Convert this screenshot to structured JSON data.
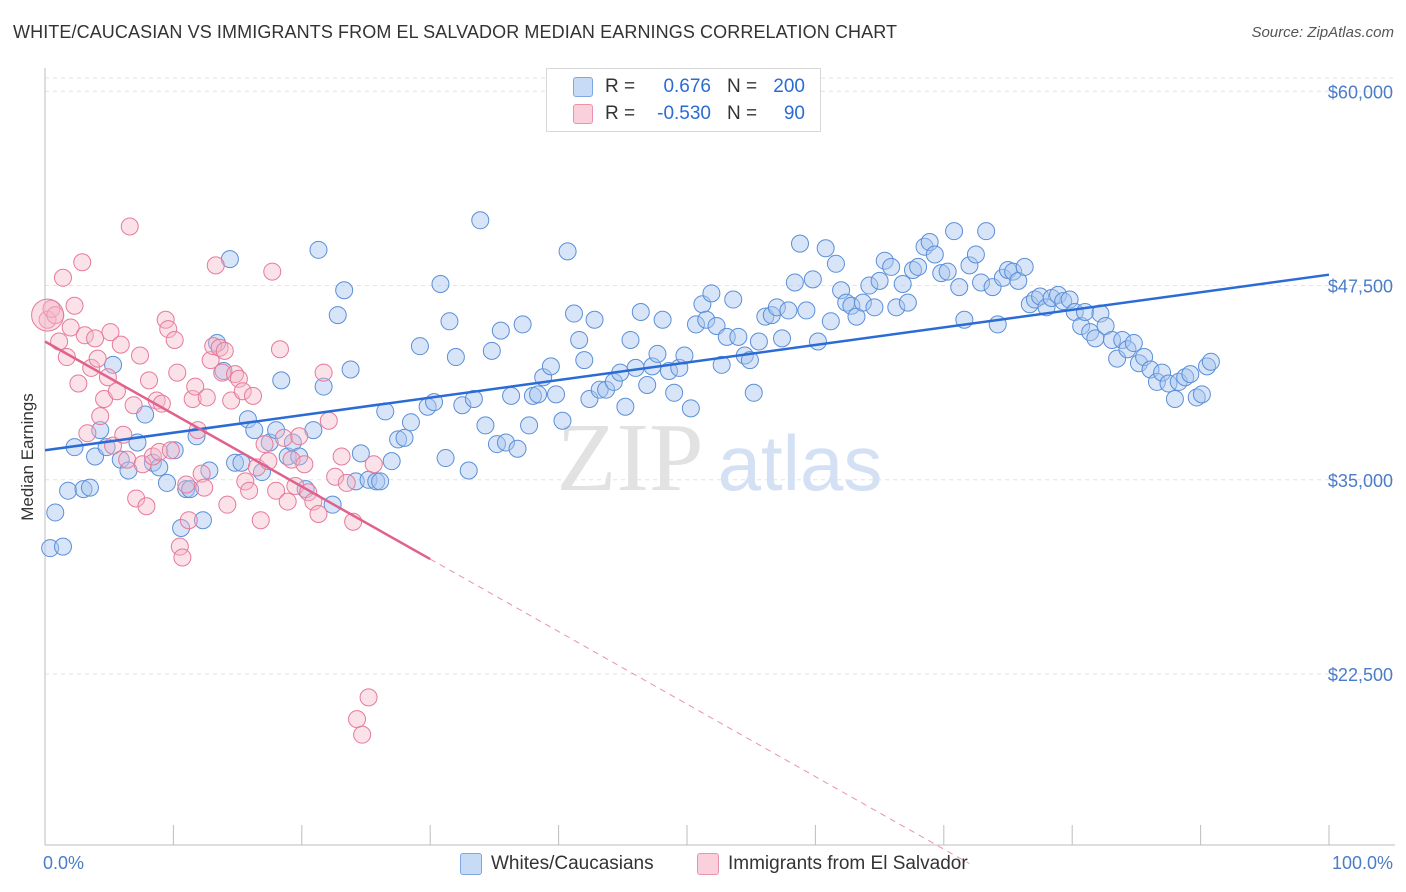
{
  "header": {
    "title": "WHITE/CAUCASIAN VS IMMIGRANTS FROM EL SALVADOR MEDIAN EARNINGS CORRELATION CHART",
    "source": "Source: ZipAtlas.com"
  },
  "watermark": {
    "zip": "ZIP",
    "atlas": "atlas"
  },
  "legend": {
    "rows": [
      {
        "r_label": "R =",
        "r_value": "0.676",
        "n_label": "N =",
        "n_value": "200",
        "color": "#a9c6f0"
      },
      {
        "r_label": "R =",
        "r_value": "-0.530",
        "n_label": "N =",
        "n_value": "90",
        "color": "#f5b6c8"
      }
    ]
  },
  "bottom_legend": {
    "items": [
      {
        "label": "Whites/Caucasians",
        "color": "#a9c6f0"
      },
      {
        "label": "Immigrants from El Salvador",
        "color": "#f5b6c8"
      }
    ]
  },
  "chart_data": {
    "type": "scatter",
    "title": "WHITE/CAUCASIAN VS IMMIGRANTS FROM EL SALVADOR MEDIAN EARNINGS CORRELATION CHART",
    "xlabel": "",
    "ylabel": "Median Earnings",
    "xlim": [
      0,
      100
    ],
    "ylim": [
      11500,
      61500
    ],
    "x_tick_labels": [
      "0.0%",
      "100.0%"
    ],
    "y_ticks": [
      22500,
      35000,
      47500,
      60000
    ],
    "y_tick_labels": [
      "$22,500",
      "$35,000",
      "$47,500",
      "$60,000"
    ],
    "grid": true,
    "legend_position": "top-center",
    "colors": {
      "blue_fill": "#a9c6f0",
      "blue_edge": "#5b8fd8",
      "blue_line": "#2a6bd6",
      "pink_fill": "#f5b6c8",
      "pink_edge": "#e67a9b",
      "pink_line": "#e0628c"
    },
    "series": [
      {
        "name": "Whites/Caucasians",
        "r": 0.676,
        "n": 200,
        "trend": {
          "x": [
            0,
            100
          ],
          "y": [
            36900,
            48200
          ],
          "style": "solid"
        },
        "points": [
          [
            0.4,
            30600
          ],
          [
            1.4,
            30700
          ],
          [
            0.8,
            32900
          ],
          [
            1.8,
            34300
          ],
          [
            2.3,
            37100
          ],
          [
            3.0,
            34400
          ],
          [
            3.5,
            34500
          ],
          [
            3.9,
            36500
          ],
          [
            4.3,
            38200
          ],
          [
            4.8,
            37100
          ],
          [
            5.3,
            42400
          ],
          [
            5.9,
            36300
          ],
          [
            6.5,
            35600
          ],
          [
            7.2,
            37400
          ],
          [
            7.8,
            39200
          ],
          [
            8.4,
            36100
          ],
          [
            8.9,
            35800
          ],
          [
            9.5,
            34800
          ],
          [
            10.1,
            36900
          ],
          [
            10.6,
            31900
          ],
          [
            11.0,
            34400
          ],
          [
            11.3,
            34400
          ],
          [
            11.8,
            37800
          ],
          [
            12.3,
            32400
          ],
          [
            12.8,
            35600
          ],
          [
            13.4,
            43800
          ],
          [
            13.9,
            42000
          ],
          [
            14.4,
            49200
          ],
          [
            14.8,
            36100
          ],
          [
            15.3,
            36100
          ],
          [
            15.8,
            38900
          ],
          [
            16.3,
            38200
          ],
          [
            16.9,
            35500
          ],
          [
            17.5,
            37400
          ],
          [
            18.0,
            38200
          ],
          [
            18.4,
            41400
          ],
          [
            18.9,
            36500
          ],
          [
            19.3,
            37400
          ],
          [
            19.8,
            36500
          ],
          [
            20.3,
            34400
          ],
          [
            20.9,
            38200
          ],
          [
            21.3,
            49800
          ],
          [
            21.7,
            41000
          ],
          [
            22.4,
            33400
          ],
          [
            22.8,
            45600
          ],
          [
            23.3,
            47200
          ],
          [
            23.8,
            42100
          ],
          [
            24.2,
            34900
          ],
          [
            24.6,
            36700
          ],
          [
            25.2,
            35000
          ],
          [
            25.8,
            34900
          ],
          [
            26.1,
            34900
          ],
          [
            26.5,
            39400
          ],
          [
            27.0,
            36200
          ],
          [
            27.5,
            37600
          ],
          [
            28.0,
            37700
          ],
          [
            28.5,
            38700
          ],
          [
            29.2,
            43600
          ],
          [
            29.8,
            39700
          ],
          [
            30.3,
            40000
          ],
          [
            30.8,
            47600
          ],
          [
            31.2,
            36400
          ],
          [
            31.5,
            45200
          ],
          [
            32.0,
            42900
          ],
          [
            32.5,
            39800
          ],
          [
            33.0,
            35600
          ],
          [
            33.4,
            40200
          ],
          [
            33.9,
            51700
          ],
          [
            34.3,
            38500
          ],
          [
            34.8,
            43300
          ],
          [
            35.2,
            37300
          ],
          [
            35.5,
            44600
          ],
          [
            35.9,
            37400
          ],
          [
            36.3,
            40400
          ],
          [
            36.8,
            37000
          ],
          [
            37.2,
            45000
          ],
          [
            37.7,
            38500
          ],
          [
            38.0,
            40400
          ],
          [
            38.4,
            40500
          ],
          [
            38.8,
            41600
          ],
          [
            39.4,
            42300
          ],
          [
            39.8,
            40500
          ],
          [
            40.3,
            38800
          ],
          [
            40.7,
            49700
          ],
          [
            41.2,
            45700
          ],
          [
            41.6,
            44000
          ],
          [
            42.0,
            42700
          ],
          [
            42.4,
            40200
          ],
          [
            42.8,
            45300
          ],
          [
            43.2,
            40800
          ],
          [
            43.7,
            40800
          ],
          [
            44.3,
            41300
          ],
          [
            44.8,
            41900
          ],
          [
            45.2,
            39700
          ],
          [
            45.6,
            44000
          ],
          [
            46.0,
            42200
          ],
          [
            46.4,
            45800
          ],
          [
            46.9,
            41100
          ],
          [
            47.3,
            42300
          ],
          [
            47.7,
            43100
          ],
          [
            48.1,
            45300
          ],
          [
            48.6,
            42000
          ],
          [
            49.0,
            40600
          ],
          [
            49.4,
            42200
          ],
          [
            49.8,
            43000
          ],
          [
            50.3,
            39600
          ],
          [
            50.7,
            45000
          ],
          [
            51.2,
            46300
          ],
          [
            51.5,
            45300
          ],
          [
            51.9,
            47000
          ],
          [
            52.3,
            44900
          ],
          [
            52.7,
            42400
          ],
          [
            53.1,
            44200
          ],
          [
            53.6,
            46600
          ],
          [
            54.0,
            44200
          ],
          [
            54.5,
            43000
          ],
          [
            54.9,
            42700
          ],
          [
            55.2,
            40600
          ],
          [
            55.6,
            43900
          ],
          [
            56.1,
            45500
          ],
          [
            56.6,
            45600
          ],
          [
            57.0,
            46100
          ],
          [
            57.4,
            44100
          ],
          [
            57.9,
            45900
          ],
          [
            58.4,
            47700
          ],
          [
            58.8,
            50200
          ],
          [
            59.3,
            45900
          ],
          [
            59.8,
            47900
          ],
          [
            60.2,
            43900
          ],
          [
            60.8,
            49900
          ],
          [
            61.2,
            45200
          ],
          [
            61.6,
            48900
          ],
          [
            62.0,
            47200
          ],
          [
            62.4,
            46400
          ],
          [
            62.8,
            46200
          ],
          [
            63.2,
            45500
          ],
          [
            63.7,
            46400
          ],
          [
            64.2,
            47500
          ],
          [
            64.6,
            46100
          ],
          [
            65.0,
            47800
          ],
          [
            65.4,
            49100
          ],
          [
            65.9,
            48700
          ],
          [
            66.3,
            46100
          ],
          [
            66.8,
            47600
          ],
          [
            67.2,
            46400
          ],
          [
            67.6,
            48500
          ],
          [
            68.0,
            48700
          ],
          [
            68.5,
            50000
          ],
          [
            68.9,
            50300
          ],
          [
            69.3,
            49500
          ],
          [
            69.8,
            48300
          ],
          [
            70.3,
            48400
          ],
          [
            70.8,
            51000
          ],
          [
            71.2,
            47400
          ],
          [
            71.6,
            45300
          ],
          [
            72.0,
            48800
          ],
          [
            72.5,
            49500
          ],
          [
            72.9,
            47700
          ],
          [
            73.3,
            51000
          ],
          [
            73.8,
            47400
          ],
          [
            74.2,
            45000
          ],
          [
            74.6,
            48000
          ],
          [
            75.0,
            48500
          ],
          [
            75.4,
            48400
          ],
          [
            75.8,
            47800
          ],
          [
            76.3,
            48700
          ],
          [
            76.7,
            46300
          ],
          [
            77.1,
            46600
          ],
          [
            77.5,
            46800
          ],
          [
            78.0,
            46100
          ],
          [
            78.4,
            46700
          ],
          [
            78.9,
            46900
          ],
          [
            79.3,
            46500
          ],
          [
            79.8,
            46600
          ],
          [
            80.2,
            45800
          ],
          [
            80.7,
            44900
          ],
          [
            81.0,
            45800
          ],
          [
            81.4,
            44500
          ],
          [
            81.8,
            44100
          ],
          [
            82.2,
            45700
          ],
          [
            82.6,
            44900
          ],
          [
            83.1,
            44000
          ],
          [
            83.5,
            42800
          ],
          [
            83.9,
            44000
          ],
          [
            84.3,
            43400
          ],
          [
            84.8,
            43800
          ],
          [
            85.2,
            42500
          ],
          [
            85.6,
            42900
          ],
          [
            86.1,
            42100
          ],
          [
            86.6,
            41300
          ],
          [
            87.0,
            41900
          ],
          [
            87.5,
            41200
          ],
          [
            88.0,
            40200
          ],
          [
            88.3,
            41300
          ],
          [
            88.8,
            41600
          ],
          [
            89.2,
            41800
          ],
          [
            89.7,
            40300
          ],
          [
            90.1,
            40500
          ],
          [
            90.5,
            42300
          ],
          [
            90.8,
            42600
          ]
        ]
      },
      {
        "name": "Immigrants from El Salvador",
        "r": -0.53,
        "n": 90,
        "trend": {
          "x": [
            0,
            30
          ],
          "y": [
            43900,
            29900
          ],
          "dashed_extension_to": [
            72,
            10300
          ]
        },
        "points": [
          [
            0.2,
            45300
          ],
          [
            0.5,
            46000
          ],
          [
            0.8,
            45600
          ],
          [
            1.1,
            43900
          ],
          [
            1.4,
            48000
          ],
          [
            1.7,
            42900
          ],
          [
            2.0,
            44800
          ],
          [
            2.3,
            46200
          ],
          [
            2.6,
            41200
          ],
          [
            2.9,
            49000
          ],
          [
            3.1,
            44300
          ],
          [
            3.3,
            38000
          ],
          [
            3.6,
            42200
          ],
          [
            3.9,
            44100
          ],
          [
            4.1,
            42800
          ],
          [
            4.3,
            39100
          ],
          [
            4.6,
            40200
          ],
          [
            4.9,
            41600
          ],
          [
            5.1,
            44500
          ],
          [
            5.3,
            37200
          ],
          [
            5.6,
            40700
          ],
          [
            5.9,
            43700
          ],
          [
            6.1,
            37900
          ],
          [
            6.4,
            36300
          ],
          [
            6.6,
            51300
          ],
          [
            6.9,
            39800
          ],
          [
            7.1,
            33800
          ],
          [
            7.4,
            43000
          ],
          [
            7.6,
            36000
          ],
          [
            7.9,
            33300
          ],
          [
            8.1,
            41400
          ],
          [
            8.4,
            36500
          ],
          [
            8.7,
            40100
          ],
          [
            8.9,
            36800
          ],
          [
            9.1,
            39900
          ],
          [
            9.4,
            45300
          ],
          [
            9.6,
            44700
          ],
          [
            9.8,
            36900
          ],
          [
            10.1,
            44000
          ],
          [
            10.3,
            41900
          ],
          [
            10.5,
            30700
          ],
          [
            10.7,
            30000
          ],
          [
            11.0,
            34700
          ],
          [
            11.2,
            32400
          ],
          [
            11.5,
            40200
          ],
          [
            11.7,
            41000
          ],
          [
            11.9,
            38200
          ],
          [
            12.2,
            35400
          ],
          [
            12.4,
            34500
          ],
          [
            12.6,
            40300
          ],
          [
            12.9,
            42700
          ],
          [
            13.1,
            43600
          ],
          [
            13.3,
            48800
          ],
          [
            13.6,
            43500
          ],
          [
            13.8,
            41900
          ],
          [
            14.0,
            43300
          ],
          [
            14.2,
            33400
          ],
          [
            14.5,
            40100
          ],
          [
            14.8,
            41800
          ],
          [
            15.1,
            41500
          ],
          [
            15.4,
            40700
          ],
          [
            15.6,
            34900
          ],
          [
            15.9,
            34300
          ],
          [
            16.2,
            40400
          ],
          [
            16.5,
            35800
          ],
          [
            16.8,
            32400
          ],
          [
            17.1,
            37300
          ],
          [
            17.4,
            36200
          ],
          [
            17.7,
            48400
          ],
          [
            18.0,
            34300
          ],
          [
            18.3,
            43400
          ],
          [
            18.6,
            37700
          ],
          [
            18.9,
            33600
          ],
          [
            19.2,
            36300
          ],
          [
            19.5,
            34600
          ],
          [
            19.8,
            37800
          ],
          [
            20.2,
            36000
          ],
          [
            20.5,
            34200
          ],
          [
            20.9,
            33600
          ],
          [
            21.3,
            32800
          ],
          [
            21.7,
            41900
          ],
          [
            22.1,
            38800
          ],
          [
            22.6,
            35200
          ],
          [
            23.1,
            36500
          ],
          [
            23.5,
            34800
          ],
          [
            24.0,
            32300
          ],
          [
            24.3,
            19600
          ],
          [
            24.7,
            18600
          ],
          [
            25.2,
            21000
          ],
          [
            25.6,
            36000
          ]
        ]
      }
    ]
  }
}
